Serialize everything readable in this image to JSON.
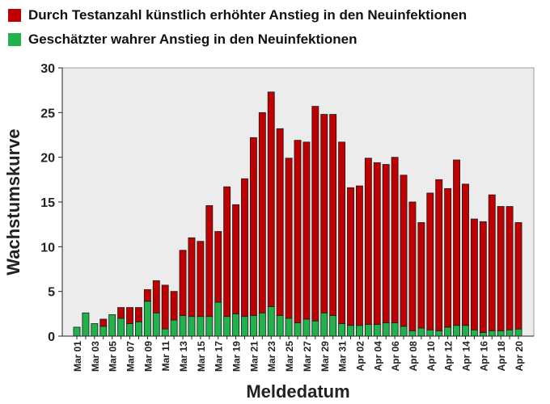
{
  "legend": {
    "items": [
      {
        "label": "Durch Testanzahl künstlich erhöhter Anstieg in den Neuinfektionen",
        "color": "#c00000"
      },
      {
        "label": "Geschätzter wahrer Anstieg in den Neuinfektionen",
        "color": "#21b24b"
      }
    ]
  },
  "chart_data": {
    "type": "bar",
    "stacked": true,
    "xlabel": "Meldedatum",
    "ylabel": "Wachstumskurve",
    "ylim": [
      0,
      30
    ],
    "yticks": [
      0,
      5,
      10,
      15,
      20,
      25,
      30
    ],
    "plot_background": "#ececec",
    "categories": [
      "Mar 01",
      "Mar 02",
      "Mar 03",
      "Mar 04",
      "Mar 05",
      "Mar 06",
      "Mar 07",
      "Mar 08",
      "Mar 09",
      "Mar 10",
      "Mar 11",
      "Mar 12",
      "Mar 13",
      "Mar 14",
      "Mar 15",
      "Mar 16",
      "Mar 17",
      "Mar 18",
      "Mar 19",
      "Mar 20",
      "Mar 21",
      "Mar 22",
      "Mar 23",
      "Mar 24",
      "Mar 25",
      "Mar 26",
      "Mar 27",
      "Mar 28",
      "Mar 29",
      "Mar 30",
      "Mar 31",
      "Apr 01",
      "Apr 02",
      "Apr 03",
      "Apr 04",
      "Apr 05",
      "Apr 06",
      "Apr 07",
      "Apr 08",
      "Apr 09",
      "Apr 10",
      "Apr 11",
      "Apr 12",
      "Apr 13",
      "Apr 14",
      "Apr 15",
      "Apr 16",
      "Apr 17",
      "Apr 18",
      "Apr 19",
      "Apr 20"
    ],
    "tick_labels": [
      "Mar 01",
      "Mar 03",
      "Mar 05",
      "Mar 07",
      "Mar 09",
      "Mar 11",
      "Mar 13",
      "Mar 15",
      "Mar 17",
      "Mar 19",
      "Mar 21",
      "Mar 23",
      "Mar 25",
      "Mar 27",
      "Mar 29",
      "Mar 31",
      "Apr 02",
      "Apr 04",
      "Apr 06",
      "Apr 08",
      "Apr 10",
      "Apr 12",
      "Apr 14",
      "Apr 16",
      "Apr 18",
      "Apr 20"
    ],
    "series": [
      {
        "name": "Geschätzter wahrer Anstieg in den Neuinfektionen",
        "color": "#21b24b",
        "values": [
          1.0,
          2.6,
          1.4,
          1.1,
          2.4,
          2.0,
          1.4,
          1.6,
          3.9,
          2.6,
          0.8,
          1.8,
          2.3,
          2.2,
          2.2,
          2.2,
          3.8,
          2.2,
          2.5,
          2.2,
          2.3,
          2.6,
          3.3,
          2.3,
          2.0,
          1.5,
          1.9,
          1.7,
          2.6,
          2.3,
          1.4,
          1.2,
          1.2,
          1.3,
          1.3,
          1.5,
          1.5,
          1.1,
          0.6,
          0.9,
          0.7,
          0.6,
          1.0,
          1.2,
          1.2,
          0.7,
          0.4,
          0.6,
          0.6,
          0.7,
          0.8
        ]
      },
      {
        "name": "Durch Testanzahl künstlich erhöhter Anstieg in den Neuinfektionen",
        "color": "#c00000",
        "values": [
          0,
          0,
          0,
          0.8,
          0,
          1.2,
          1.8,
          1.6,
          1.3,
          3.6,
          4.9,
          3.2,
          7.3,
          8.8,
          8.4,
          12.4,
          7.9,
          14.5,
          12.2,
          15.4,
          19.9,
          22.4,
          24.0,
          20.9,
          17.9,
          20.4,
          19.8,
          24.0,
          22.2,
          22.5,
          20.3,
          15.4,
          15.6,
          18.6,
          18.1,
          17.7,
          18.5,
          16.9,
          14.4,
          11.8,
          15.3,
          16.9,
          15.5,
          18.5,
          15.8,
          12.4,
          12.4,
          15.2,
          13.9,
          13.8,
          11.9
        ]
      }
    ]
  }
}
